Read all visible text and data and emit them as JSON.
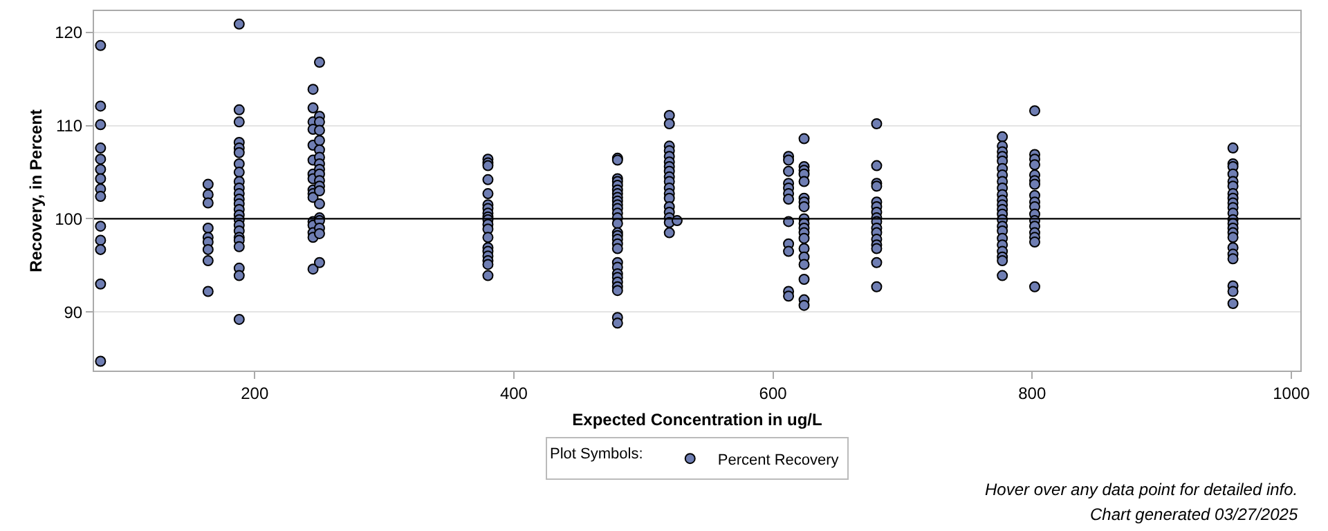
{
  "chart_data": {
    "type": "scatter",
    "xlabel": "Expected Concentration in ug/L",
    "ylabel": "Recovery, in Percent",
    "legend_title": "Plot Symbols:",
    "legend": "bottom",
    "marker": "circle",
    "grid": "y",
    "xlim": [
      76,
      1007
    ],
    "xticks": [
      200,
      400,
      600,
      800,
      1000
    ],
    "ylim": [
      83.7,
      122.3
    ],
    "yticks": [
      90,
      100,
      110,
      120
    ],
    "ref_lines": [
      {
        "axis": "y",
        "value": 100,
        "color": "#000000"
      }
    ],
    "annotations": [
      "Hover over any data point for detailed info.",
      "Chart generated 03/27/2025"
    ],
    "series": [
      {
        "name": "Percent Recovery",
        "color": "#6f7eb3",
        "x": [
          81,
          81,
          81,
          81,
          81,
          81,
          81,
          81,
          81,
          81,
          81,
          81,
          81,
          81,
          164,
          164,
          164,
          164,
          164,
          164,
          164,
          164,
          164,
          188,
          188,
          188,
          188,
          188,
          188,
          188,
          188,
          188,
          188,
          188,
          188,
          188,
          188,
          188,
          188,
          188,
          188,
          188,
          188,
          188,
          188,
          188,
          188,
          245,
          245,
          245,
          245,
          245,
          245,
          245,
          245,
          245,
          245,
          245,
          245,
          245,
          245,
          245,
          245,
          250,
          250,
          250,
          250,
          250,
          250,
          250,
          250,
          250,
          250,
          250,
          250,
          250,
          250,
          250,
          250,
          250,
          250,
          250,
          380,
          380,
          380,
          380,
          380,
          380,
          380,
          380,
          380,
          380,
          380,
          380,
          380,
          380,
          380,
          380,
          380,
          380,
          380,
          480,
          480,
          480,
          480,
          480,
          480,
          480,
          480,
          480,
          480,
          480,
          480,
          480,
          480,
          480,
          480,
          480,
          480,
          480,
          480,
          480,
          480,
          480,
          480,
          480,
          480,
          480,
          480,
          520,
          520,
          520,
          520,
          520,
          520,
          520,
          520,
          520,
          520,
          520,
          520,
          520,
          520,
          520,
          520,
          520,
          520,
          526,
          612,
          612,
          612,
          612,
          612,
          612,
          612,
          612,
          612,
          612,
          612,
          612,
          624,
          624,
          624,
          624,
          624,
          624,
          624,
          624,
          624,
          624,
          624,
          624,
          624,
          624,
          624,
          624,
          624,
          624,
          624,
          680,
          680,
          680,
          680,
          680,
          680,
          680,
          680,
          680,
          680,
          680,
          680,
          680,
          680,
          680,
          680,
          777,
          777,
          777,
          777,
          777,
          777,
          777,
          777,
          777,
          777,
          777,
          777,
          777,
          777,
          777,
          777,
          777,
          777,
          777,
          777,
          777,
          777,
          777,
          802,
          802,
          802,
          802,
          802,
          802,
          802,
          802,
          802,
          802,
          802,
          802,
          802,
          802,
          802,
          802,
          802,
          955,
          955,
          955,
          955,
          955,
          955,
          955,
          955,
          955,
          955,
          955,
          955,
          955,
          955,
          955,
          955,
          955,
          955,
          955,
          955,
          955,
          955
        ],
        "values": [
          118.6,
          112.1,
          110.1,
          107.6,
          106.4,
          105.3,
          104.3,
          103.2,
          102.4,
          99.2,
          97.7,
          96.7,
          93.0,
          84.7,
          103.7,
          102.6,
          101.7,
          99.0,
          98.0,
          97.5,
          96.7,
          95.5,
          92.2,
          120.9,
          111.7,
          110.4,
          108.2,
          107.6,
          107.1,
          105.9,
          105.0,
          104.0,
          103.3,
          102.7,
          102.1,
          101.6,
          101.0,
          100.4,
          99.9,
          99.3,
          98.7,
          98.0,
          97.7,
          97.0,
          94.7,
          93.9,
          89.2,
          113.9,
          111.9,
          110.4,
          109.6,
          107.9,
          106.3,
          104.8,
          104.3,
          103.1,
          102.7,
          102.3,
          99.7,
          99.3,
          98.5,
          98.0,
          94.6,
          116.8,
          111.0,
          110.4,
          109.5,
          108.4,
          107.4,
          106.6,
          105.9,
          105.3,
          104.8,
          104.1,
          103.5,
          103.0,
          101.6,
          100.1,
          99.8,
          99.0,
          98.4,
          95.3,
          106.4,
          106.0,
          105.7,
          104.2,
          102.7,
          101.5,
          101.1,
          100.6,
          100.2,
          99.9,
          99.4,
          98.9,
          98.0,
          96.9,
          96.5,
          96.0,
          95.5,
          95.1,
          93.9,
          106.5,
          106.3,
          104.3,
          104.0,
          103.6,
          103.1,
          102.7,
          102.3,
          101.9,
          101.5,
          101.1,
          100.6,
          100.1,
          99.5,
          98.5,
          98.2,
          97.8,
          97.3,
          96.8,
          95.3,
          94.8,
          94.1,
          93.7,
          93.2,
          92.7,
          92.3,
          89.4,
          88.8,
          111.1,
          110.2,
          107.8,
          107.3,
          106.7,
          106.1,
          105.6,
          105.1,
          104.5,
          104.0,
          103.3,
          102.7,
          102.2,
          101.3,
          100.7,
          100.1,
          99.6,
          98.5,
          99.8,
          106.7,
          106.3,
          105.1,
          103.8,
          103.3,
          102.7,
          102.1,
          99.7,
          97.3,
          96.5,
          92.2,
          91.7,
          108.6,
          105.6,
          105.2,
          104.8,
          104.0,
          102.2,
          101.8,
          101.3,
          100.0,
          99.5,
          99.0,
          98.5,
          97.9,
          96.8,
          95.9,
          95.1,
          93.5,
          91.3,
          90.7,
          110.2,
          105.7,
          103.8,
          103.5,
          101.8,
          101.3,
          100.7,
          100.1,
          99.7,
          99.0,
          98.5,
          97.8,
          97.2,
          96.8,
          95.3,
          92.7,
          108.8,
          107.8,
          107.2,
          106.7,
          106.2,
          105.4,
          104.7,
          104.0,
          103.3,
          102.6,
          102.0,
          101.5,
          101.0,
          100.5,
          99.9,
          99.2,
          98.7,
          97.9,
          97.2,
          96.5,
          95.9,
          95.5,
          93.9,
          111.6,
          106.9,
          106.4,
          105.8,
          104.7,
          104.1,
          103.7,
          102.5,
          101.8,
          101.3,
          100.5,
          99.8,
          99.2,
          98.5,
          98.0,
          97.5,
          92.7,
          107.6,
          105.9,
          105.6,
          104.8,
          104.0,
          103.5,
          102.7,
          102.2,
          101.7,
          101.2,
          100.6,
          99.9,
          99.5,
          99.0,
          98.5,
          98.0,
          96.9,
          96.2,
          95.7,
          92.8,
          92.2,
          90.9
        ]
      }
    ]
  }
}
